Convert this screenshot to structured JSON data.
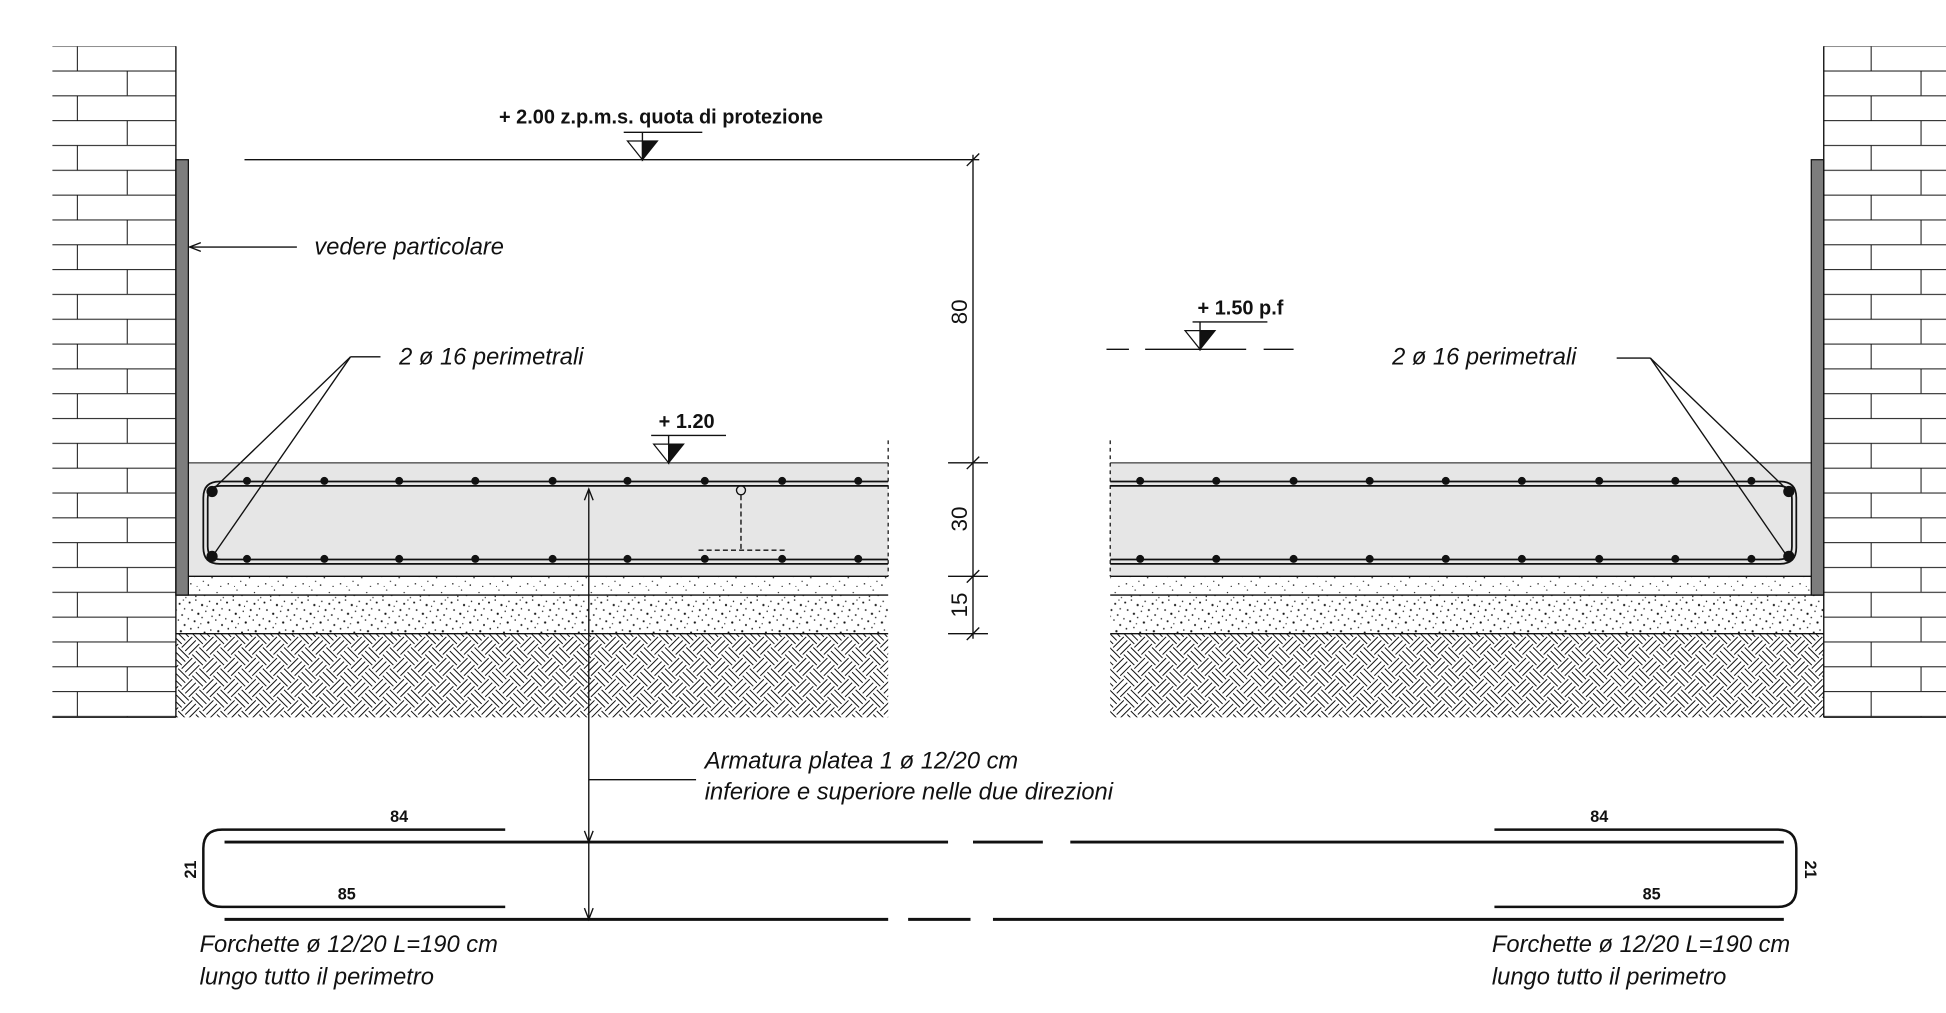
{
  "labels": {
    "protection_level": "+ 2.00 z.p.m.s. quota di protezione",
    "see_detail": "vedere particolare",
    "perimeter_bars_left": "2 ø 16 perimetrali",
    "perimeter_bars_right": "2 ø 16 perimetrali",
    "floor_level": "+ 1.50 p.f",
    "slab_top_level": "+ 1.20",
    "slab_reinforcement_line1": "Armatura platea 1 ø 12/20 cm",
    "slab_reinforcement_line2": "inferiore e superiore nelle due direzioni"
  },
  "dimensions": {
    "upper": "80",
    "slab": "30",
    "lean_concrete": "15"
  },
  "u_bars": {
    "left": {
      "top_leg": "84",
      "bottom_leg": "85",
      "height": "21",
      "note_line1": "Forchette ø 12/20 L=190 cm",
      "note_line2": "lungo tutto il perimetro"
    },
    "right": {
      "top_leg": "84",
      "bottom_leg": "85",
      "height": "21",
      "note_line1": "Forchette ø 12/20 L=190 cm",
      "note_line2": "lungo tutto il perimetro"
    }
  },
  "colors": {
    "line": "#111111",
    "concrete": "#e6e6e6",
    "membrane": "#7d7d7d",
    "paper": "#ffffff"
  }
}
